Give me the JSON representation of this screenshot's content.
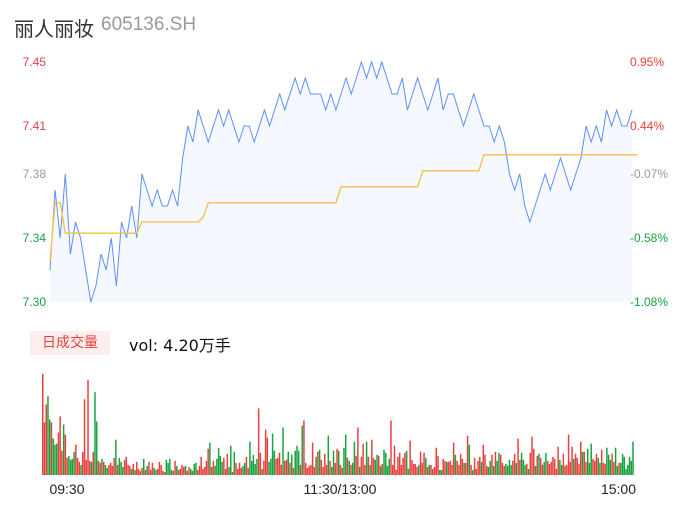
{
  "header": {
    "name": "丽人丽妆",
    "code": "605136.SH"
  },
  "volume_panel": {
    "tag": "日成交量",
    "label": "vol: 4.20万手"
  },
  "colors": {
    "price_line": "#5b8ff9",
    "avg_line": "#f4c045",
    "up": "#e8413e",
    "down": "#18a33e",
    "neutral": "#999999",
    "area_fill": "#f5f8fe"
  },
  "chart_data": [
    {
      "type": "line",
      "x_tick_labels": [
        "09:30",
        "11:30/13:00",
        "15:00"
      ],
      "y_tick_labels": [
        "7.45",
        "7.41",
        "7.38",
        "7.34",
        "7.30"
      ],
      "y_tick_values": [
        7.45,
        7.41,
        7.38,
        7.34,
        7.3
      ],
      "y_right_labels": [
        "0.95%",
        "0.44%",
        "-0.07%",
        "-0.58%",
        "-1.08%"
      ],
      "ylim": [
        7.3,
        7.45
      ],
      "grid": false,
      "series": [
        {
          "values": [
            7.32,
            7.37,
            7.34,
            7.38,
            7.33,
            7.35,
            7.34,
            7.32,
            7.3,
            7.31,
            7.33,
            7.32,
            7.34,
            7.31,
            7.35,
            7.34,
            7.36,
            7.34,
            7.38,
            7.37,
            7.36,
            7.37,
            7.36,
            7.36,
            7.37,
            7.36,
            7.39,
            7.41,
            7.4,
            7.42,
            7.41,
            7.4,
            7.41,
            7.42,
            7.41,
            7.42,
            7.41,
            7.4,
            7.41,
            7.41,
            7.4,
            7.41,
            7.42,
            7.41,
            7.42,
            7.43,
            7.42,
            7.43,
            7.44,
            7.43,
            7.44,
            7.43,
            7.43,
            7.43,
            7.42,
            7.43,
            7.42,
            7.43,
            7.44,
            7.43,
            7.44,
            7.45,
            7.44,
            7.45,
            7.44,
            7.45,
            7.44,
            7.43,
            7.43,
            7.44,
            7.42,
            7.43,
            7.44,
            7.43,
            7.42,
            7.43,
            7.44,
            7.42,
            7.43,
            7.43,
            7.42,
            7.41,
            7.42,
            7.43,
            7.42,
            7.41,
            7.41,
            7.4,
            7.41,
            7.4,
            7.38,
            7.37,
            7.38,
            7.36,
            7.35,
            7.36,
            7.37,
            7.38,
            7.37,
            7.38,
            7.39,
            7.38,
            7.37,
            7.38,
            7.39,
            7.41,
            7.4,
            7.41,
            7.4,
            7.42,
            7.41,
            7.42,
            7.41,
            7.41,
            7.42
          ]
        },
        {
          "values": [
            7.325,
            7.362,
            7.362,
            7.343,
            7.343,
            7.343,
            7.343,
            7.343,
            7.343,
            7.343,
            7.343,
            7.343,
            7.343,
            7.343,
            7.343,
            7.343,
            7.343,
            7.343,
            7.35,
            7.35,
            7.35,
            7.35,
            7.35,
            7.35,
            7.35,
            7.35,
            7.35,
            7.35,
            7.35,
            7.35,
            7.353,
            7.362,
            7.362,
            7.362,
            7.362,
            7.362,
            7.362,
            7.362,
            7.362,
            7.362,
            7.362,
            7.362,
            7.362,
            7.362,
            7.362,
            7.362,
            7.362,
            7.362,
            7.362,
            7.362,
            7.362,
            7.362,
            7.362,
            7.362,
            7.362,
            7.362,
            7.362,
            7.372,
            7.372,
            7.372,
            7.372,
            7.372,
            7.372,
            7.372,
            7.372,
            7.372,
            7.372,
            7.372,
            7.372,
            7.372,
            7.372,
            7.372,
            7.372,
            7.382,
            7.382,
            7.382,
            7.382,
            7.382,
            7.382,
            7.382,
            7.382,
            7.382,
            7.382,
            7.382,
            7.382,
            7.392,
            7.392,
            7.392,
            7.392,
            7.392,
            7.392,
            7.392,
            7.392,
            7.392,
            7.392,
            7.392,
            7.392,
            7.392,
            7.392,
            7.392,
            7.392,
            7.392,
            7.392,
            7.392,
            7.392,
            7.392,
            7.392,
            7.392,
            7.392,
            7.392,
            7.392,
            7.392,
            7.392,
            7.392,
            7.392,
            7.392
          ]
        }
      ]
    },
    {
      "type": "bar",
      "values": [
        100,
        52,
        70,
        78,
        55,
        52,
        36,
        30,
        31,
        42,
        58,
        24,
        50,
        40,
        17,
        19,
        15,
        16,
        23,
        30,
        17,
        13,
        10,
        23,
        75,
        15,
        94,
        14,
        13,
        23,
        82,
        53,
        14,
        12,
        16,
        13,
        10,
        7,
        10,
        12,
        9,
        17,
        35,
        10,
        17,
        13,
        8,
        15,
        18,
        10,
        9,
        6,
        11,
        5,
        13,
        6,
        4,
        7,
        16,
        5,
        9,
        13,
        5,
        12,
        7,
        5,
        6,
        13,
        10,
        4,
        3,
        15,
        12,
        16,
        5,
        4,
        14,
        9,
        5,
        6,
        10,
        8,
        9,
        4,
        8,
        6,
        4,
        11,
        12,
        5,
        9,
        18,
        6,
        8,
        14,
        26,
        32,
        8,
        14,
        9,
        16,
        27,
        19,
        13,
        17,
        6,
        21,
        8,
        29,
        3,
        23,
        12,
        6,
        12,
        7,
        9,
        12,
        18,
        7,
        33,
        14,
        20,
        11,
        16,
        66,
        22,
        6,
        14,
        45,
        37,
        13,
        16,
        41,
        24,
        16,
        17,
        22,
        10,
        47,
        14,
        15,
        23,
        12,
        20,
        7,
        24,
        29,
        24,
        10,
        49,
        54,
        12,
        7,
        9,
        10,
        32,
        8,
        18,
        23,
        25,
        15,
        8,
        21,
        10,
        39,
        14,
        8,
        24,
        12,
        26,
        24,
        10,
        7,
        27,
        40,
        17,
        14,
        10,
        12,
        33,
        19,
        47,
        8,
        18,
        31,
        10,
        33,
        18,
        10,
        35,
        17,
        15,
        20,
        19,
        9,
        11,
        25,
        22,
        9,
        16,
        54,
        10,
        29,
        5,
        18,
        22,
        10,
        17,
        22,
        24,
        6,
        34,
        15,
        11,
        11,
        8,
        10,
        23,
        12,
        22,
        17,
        8,
        10,
        10,
        6,
        8,
        27,
        19,
        5,
        5,
        16,
        14,
        13,
        13,
        14,
        10,
        32,
        20,
        14,
        10,
        21,
        16,
        12,
        12,
        39,
        30,
        10,
        5,
        17,
        6,
        14,
        18,
        13,
        30,
        20,
        9,
        8,
        14,
        20,
        9,
        23,
        14,
        22,
        20,
        12,
        9,
        11,
        9,
        15,
        10,
        14,
        21,
        12,
        36,
        15,
        22,
        15,
        10,
        11,
        6,
        22,
        38,
        26,
        9,
        19,
        21,
        17,
        10,
        13,
        22,
        14,
        11,
        13,
        18,
        16,
        6,
        28,
        15,
        10,
        21,
        9,
        10,
        40,
        13,
        28,
        16,
        21,
        17,
        11,
        33,
        23,
        23,
        13,
        26,
        12,
        31,
        16,
        14,
        21,
        17,
        12,
        25,
        12,
        11,
        27,
        20,
        15,
        21,
        13,
        27,
        9,
        12,
        12,
        21,
        18,
        6,
        10,
        18,
        14,
        33
      ],
      "up_flags": [
        1,
        1,
        1,
        0,
        0,
        1,
        0,
        0,
        0,
        1,
        1,
        1,
        0,
        1,
        1,
        0,
        0,
        0,
        0,
        1,
        1,
        1,
        0,
        1,
        1,
        1,
        1,
        1,
        0,
        1,
        0,
        0,
        1,
        1,
        0,
        1,
        0,
        0,
        1,
        1,
        1,
        1,
        0,
        1,
        0,
        0,
        0,
        1,
        1,
        1,
        1,
        0,
        1,
        0,
        1,
        1,
        1,
        1,
        0,
        1,
        0,
        1,
        1,
        1,
        0,
        0,
        1,
        1,
        1,
        1,
        1,
        0,
        0,
        0,
        0,
        1,
        1,
        0,
        1,
        1,
        1,
        1,
        0,
        1,
        1,
        0,
        0,
        0,
        0,
        1,
        1,
        1,
        1,
        1,
        1,
        1,
        0,
        1,
        1,
        0,
        0,
        0,
        0,
        0,
        1,
        1,
        1,
        0,
        0,
        1,
        0,
        1,
        1,
        1,
        1,
        0,
        0,
        1,
        1,
        0,
        0,
        0,
        0,
        0,
        1,
        1,
        0,
        1,
        1,
        1,
        0,
        0,
        0,
        0,
        1,
        1,
        1,
        1,
        0,
        1,
        1,
        0,
        1,
        0,
        1,
        0,
        0,
        0,
        1,
        0,
        1,
        1,
        1,
        1,
        1,
        1,
        1,
        0,
        1,
        0,
        1,
        1,
        1,
        1,
        0,
        1,
        0,
        0,
        1,
        1,
        0,
        1,
        1,
        0,
        0,
        1,
        0,
        1,
        0,
        0,
        1,
        1,
        0,
        1,
        1,
        1,
        0,
        1,
        0,
        1,
        1,
        0,
        0,
        1,
        0,
        1,
        0,
        0,
        0,
        0,
        1,
        1,
        1,
        1,
        1,
        1,
        1,
        1,
        1,
        0,
        0,
        1,
        1,
        1,
        1,
        1,
        0,
        1,
        1,
        1,
        0,
        1,
        0,
        1,
        1,
        1,
        1,
        1,
        0,
        0,
        1,
        1,
        0,
        1,
        1,
        1,
        1,
        0,
        1,
        1,
        1,
        1,
        0,
        1,
        1,
        0,
        1,
        0,
        1,
        1,
        1,
        1,
        0,
        1,
        1,
        1,
        0,
        0,
        1,
        0,
        1,
        0,
        0,
        1,
        1,
        1,
        0,
        0,
        0,
        0,
        1,
        1,
        0,
        1,
        1,
        0,
        0,
        0,
        1,
        0,
        1,
        1,
        1,
        0,
        1,
        0,
        1,
        1,
        0,
        0,
        1,
        1,
        1,
        1,
        1,
        1,
        1,
        0,
        0,
        1,
        1,
        1,
        1,
        1,
        1,
        0,
        1,
        1,
        1,
        1,
        0,
        1,
        1,
        0,
        0,
        0,
        1,
        1,
        1,
        0,
        0,
        1,
        1,
        1,
        0,
        0,
        0,
        1,
        1,
        0,
        0,
        1
      ]
    }
  ]
}
